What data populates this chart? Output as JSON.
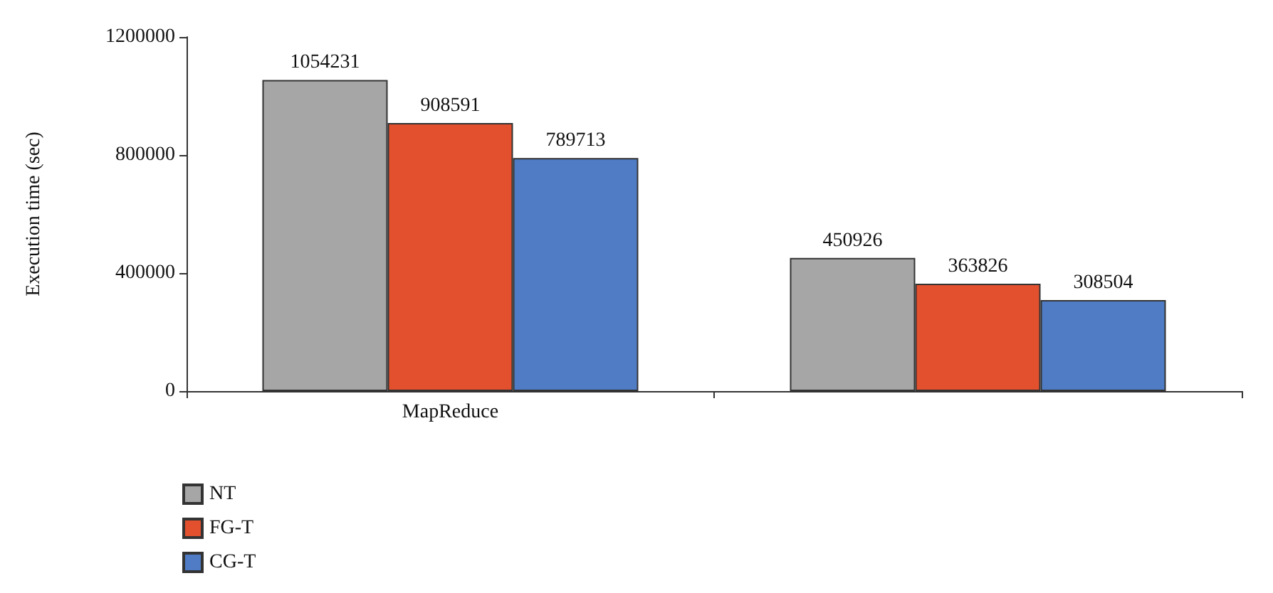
{
  "chart_data": {
    "type": "bar",
    "ylabel": "Execution time (sec)",
    "categories": [
      "MapReduce",
      null
    ],
    "series": [
      {
        "name": "NT",
        "color": "#a6a6a6",
        "values": [
          1054231,
          450926
        ]
      },
      {
        "name": "FG-T",
        "color": "#e2502e",
        "values": [
          908591,
          363826
        ]
      },
      {
        "name": "CG-T",
        "color": "#4f7cc4",
        "values": [
          789713,
          308504
        ]
      }
    ],
    "ylim": [
      0,
      1200000
    ],
    "yticks": [
      0,
      400000,
      800000,
      1200000
    ],
    "grid": false,
    "legend": "bottom left",
    "data_labels": true
  }
}
